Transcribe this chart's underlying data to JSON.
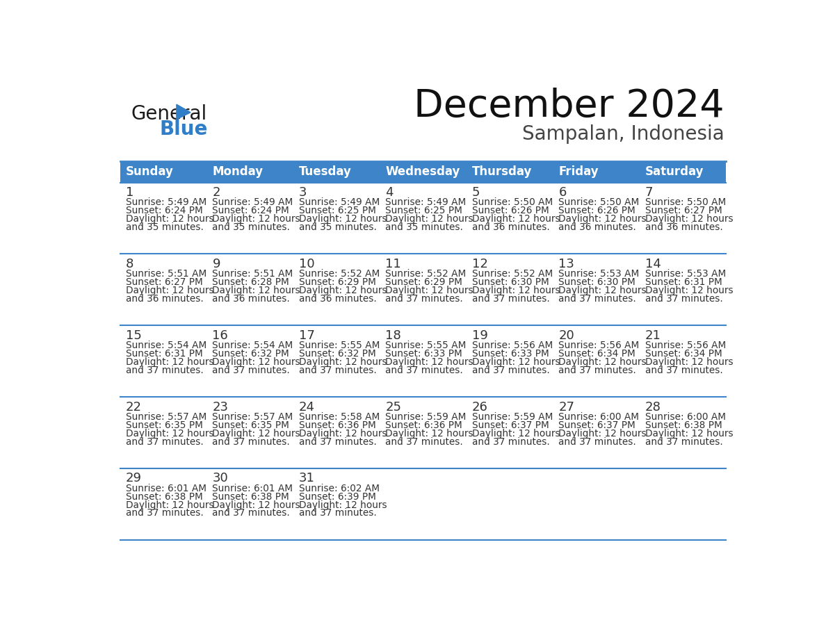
{
  "title": "December 2024",
  "subtitle": "Sampalan, Indonesia",
  "header_bg_color": "#3d85c8",
  "header_text_color": "#FFFFFF",
  "cell_bg_white": "#FFFFFF",
  "cell_bg_gray": "#F0F0F0",
  "border_color": "#3d85c8",
  "text_color": "#333333",
  "days_of_week": [
    "Sunday",
    "Monday",
    "Tuesday",
    "Wednesday",
    "Thursday",
    "Friday",
    "Saturday"
  ],
  "calendar_data": [
    [
      {
        "day": "1",
        "sunrise": "5:49 AM",
        "sunset": "6:24 PM",
        "daylight_h": "12 hours",
        "daylight_m": "and 35 minutes."
      },
      {
        "day": "2",
        "sunrise": "5:49 AM",
        "sunset": "6:24 PM",
        "daylight_h": "12 hours",
        "daylight_m": "and 35 minutes."
      },
      {
        "day": "3",
        "sunrise": "5:49 AM",
        "sunset": "6:25 PM",
        "daylight_h": "12 hours",
        "daylight_m": "and 35 minutes."
      },
      {
        "day": "4",
        "sunrise": "5:49 AM",
        "sunset": "6:25 PM",
        "daylight_h": "12 hours",
        "daylight_m": "and 35 minutes."
      },
      {
        "day": "5",
        "sunrise": "5:50 AM",
        "sunset": "6:26 PM",
        "daylight_h": "12 hours",
        "daylight_m": "and 36 minutes."
      },
      {
        "day": "6",
        "sunrise": "5:50 AM",
        "sunset": "6:26 PM",
        "daylight_h": "12 hours",
        "daylight_m": "and 36 minutes."
      },
      {
        "day": "7",
        "sunrise": "5:50 AM",
        "sunset": "6:27 PM",
        "daylight_h": "12 hours",
        "daylight_m": "and 36 minutes."
      }
    ],
    [
      {
        "day": "8",
        "sunrise": "5:51 AM",
        "sunset": "6:27 PM",
        "daylight_h": "12 hours",
        "daylight_m": "and 36 minutes."
      },
      {
        "day": "9",
        "sunrise": "5:51 AM",
        "sunset": "6:28 PM",
        "daylight_h": "12 hours",
        "daylight_m": "and 36 minutes."
      },
      {
        "day": "10",
        "sunrise": "5:52 AM",
        "sunset": "6:29 PM",
        "daylight_h": "12 hours",
        "daylight_m": "and 36 minutes."
      },
      {
        "day": "11",
        "sunrise": "5:52 AM",
        "sunset": "6:29 PM",
        "daylight_h": "12 hours",
        "daylight_m": "and 37 minutes."
      },
      {
        "day": "12",
        "sunrise": "5:52 AM",
        "sunset": "6:30 PM",
        "daylight_h": "12 hours",
        "daylight_m": "and 37 minutes."
      },
      {
        "day": "13",
        "sunrise": "5:53 AM",
        "sunset": "6:30 PM",
        "daylight_h": "12 hours",
        "daylight_m": "and 37 minutes."
      },
      {
        "day": "14",
        "sunrise": "5:53 AM",
        "sunset": "6:31 PM",
        "daylight_h": "12 hours",
        "daylight_m": "and 37 minutes."
      }
    ],
    [
      {
        "day": "15",
        "sunrise": "5:54 AM",
        "sunset": "6:31 PM",
        "daylight_h": "12 hours",
        "daylight_m": "and 37 minutes."
      },
      {
        "day": "16",
        "sunrise": "5:54 AM",
        "sunset": "6:32 PM",
        "daylight_h": "12 hours",
        "daylight_m": "and 37 minutes."
      },
      {
        "day": "17",
        "sunrise": "5:55 AM",
        "sunset": "6:32 PM",
        "daylight_h": "12 hours",
        "daylight_m": "and 37 minutes."
      },
      {
        "day": "18",
        "sunrise": "5:55 AM",
        "sunset": "6:33 PM",
        "daylight_h": "12 hours",
        "daylight_m": "and 37 minutes."
      },
      {
        "day": "19",
        "sunrise": "5:56 AM",
        "sunset": "6:33 PM",
        "daylight_h": "12 hours",
        "daylight_m": "and 37 minutes."
      },
      {
        "day": "20",
        "sunrise": "5:56 AM",
        "sunset": "6:34 PM",
        "daylight_h": "12 hours",
        "daylight_m": "and 37 minutes."
      },
      {
        "day": "21",
        "sunrise": "5:56 AM",
        "sunset": "6:34 PM",
        "daylight_h": "12 hours",
        "daylight_m": "and 37 minutes."
      }
    ],
    [
      {
        "day": "22",
        "sunrise": "5:57 AM",
        "sunset": "6:35 PM",
        "daylight_h": "12 hours",
        "daylight_m": "and 37 minutes."
      },
      {
        "day": "23",
        "sunrise": "5:57 AM",
        "sunset": "6:35 PM",
        "daylight_h": "12 hours",
        "daylight_m": "and 37 minutes."
      },
      {
        "day": "24",
        "sunrise": "5:58 AM",
        "sunset": "6:36 PM",
        "daylight_h": "12 hours",
        "daylight_m": "and 37 minutes."
      },
      {
        "day": "25",
        "sunrise": "5:59 AM",
        "sunset": "6:36 PM",
        "daylight_h": "12 hours",
        "daylight_m": "and 37 minutes."
      },
      {
        "day": "26",
        "sunrise": "5:59 AM",
        "sunset": "6:37 PM",
        "daylight_h": "12 hours",
        "daylight_m": "and 37 minutes."
      },
      {
        "day": "27",
        "sunrise": "6:00 AM",
        "sunset": "6:37 PM",
        "daylight_h": "12 hours",
        "daylight_m": "and 37 minutes."
      },
      {
        "day": "28",
        "sunrise": "6:00 AM",
        "sunset": "6:38 PM",
        "daylight_h": "12 hours",
        "daylight_m": "and 37 minutes."
      }
    ],
    [
      {
        "day": "29",
        "sunrise": "6:01 AM",
        "sunset": "6:38 PM",
        "daylight_h": "12 hours",
        "daylight_m": "and 37 minutes."
      },
      {
        "day": "30",
        "sunrise": "6:01 AM",
        "sunset": "6:38 PM",
        "daylight_h": "12 hours",
        "daylight_m": "and 37 minutes."
      },
      {
        "day": "31",
        "sunrise": "6:02 AM",
        "sunset": "6:39 PM",
        "daylight_h": "12 hours",
        "daylight_m": "and 37 minutes."
      },
      null,
      null,
      null,
      null
    ]
  ],
  "logo_general_color": "#1a1a1a",
  "logo_blue_color": "#2F7EC7",
  "logo_triangle_color": "#2F7EC7",
  "fig_width": 11.88,
  "fig_height": 9.18,
  "dpi": 100
}
